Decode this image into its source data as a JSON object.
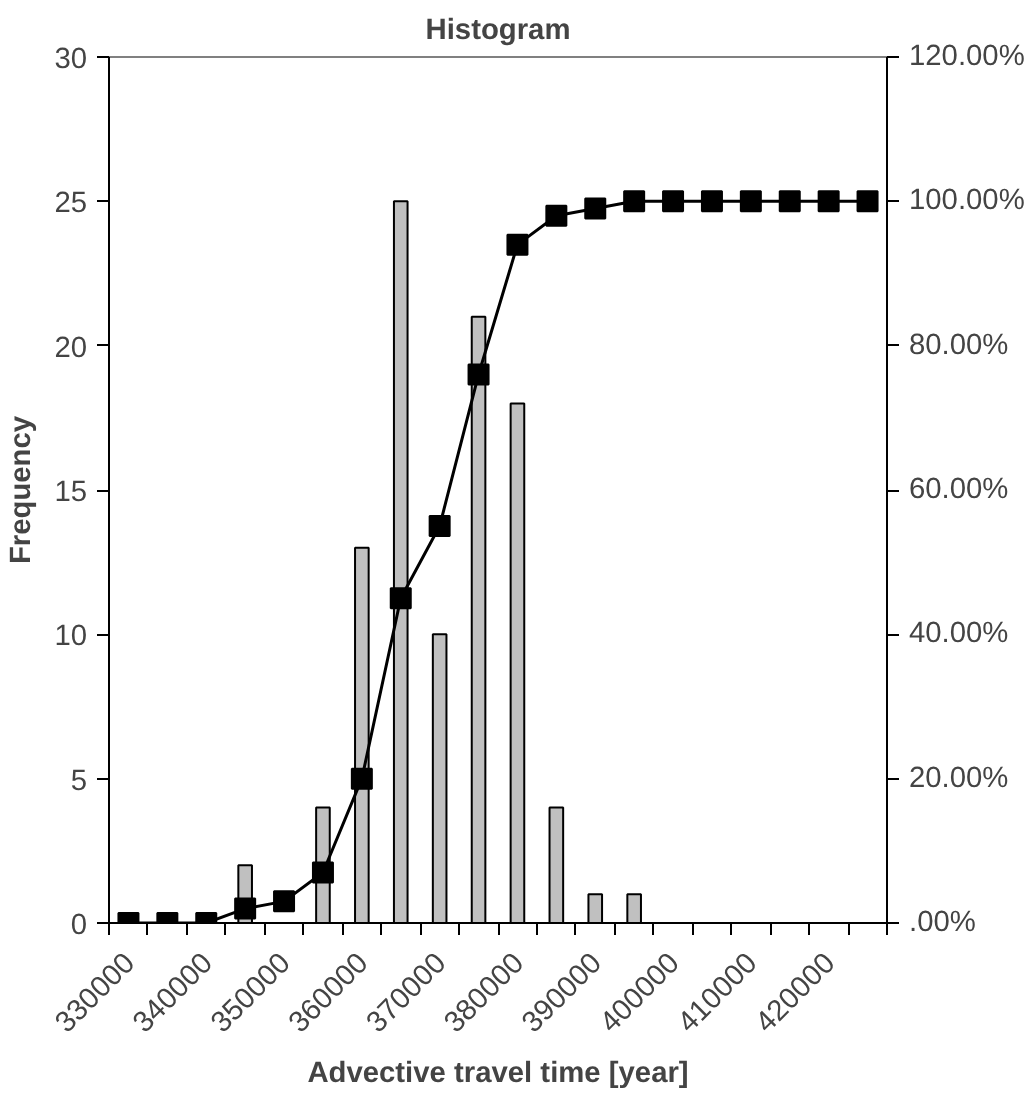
{
  "chart_data": {
    "type": "bar",
    "title": "Histogram",
    "xlabel": "Advective travel time [year]",
    "ylabel": "Frequency",
    "categories": [
      "330000",
      null,
      "340000",
      null,
      "350000",
      null,
      "360000",
      null,
      "370000",
      null,
      "380000",
      null,
      "390000",
      null,
      "400000",
      null,
      "410000",
      null,
      "420000",
      null
    ],
    "series": [
      {
        "color": "#c0c0c0",
        "values": [
          0,
          0,
          0,
          2,
          null,
          4,
          13,
          25,
          10,
          21,
          18,
          4,
          1,
          1,
          0,
          0,
          0,
          0,
          0,
          0
        ]
      },
      {
        "type": "line",
        "axis": "y2",
        "color": "#000000",
        "marker": "square",
        "values": [
          0,
          0,
          0,
          2,
          3,
          7,
          20,
          45,
          55,
          76,
          94,
          98,
          99,
          100,
          100,
          100,
          100,
          100,
          100,
          100
        ]
      }
    ],
    "ylim": [
      0,
      30
    ],
    "yticks": [
      0,
      5,
      10,
      15,
      20,
      25,
      30
    ],
    "y2lim": [
      0,
      120
    ],
    "y2ticks": [
      {
        "value": 0,
        "label": ".00%"
      },
      {
        "value": 20,
        "label": "20.00%"
      },
      {
        "value": 40,
        "label": "40.00%"
      },
      {
        "value": 60,
        "label": "60.00%"
      },
      {
        "value": 80,
        "label": "80.00%"
      },
      {
        "value": 100,
        "label": "100.00%"
      },
      {
        "value": 120,
        "label": "120.00%"
      }
    ],
    "grid": false
  }
}
